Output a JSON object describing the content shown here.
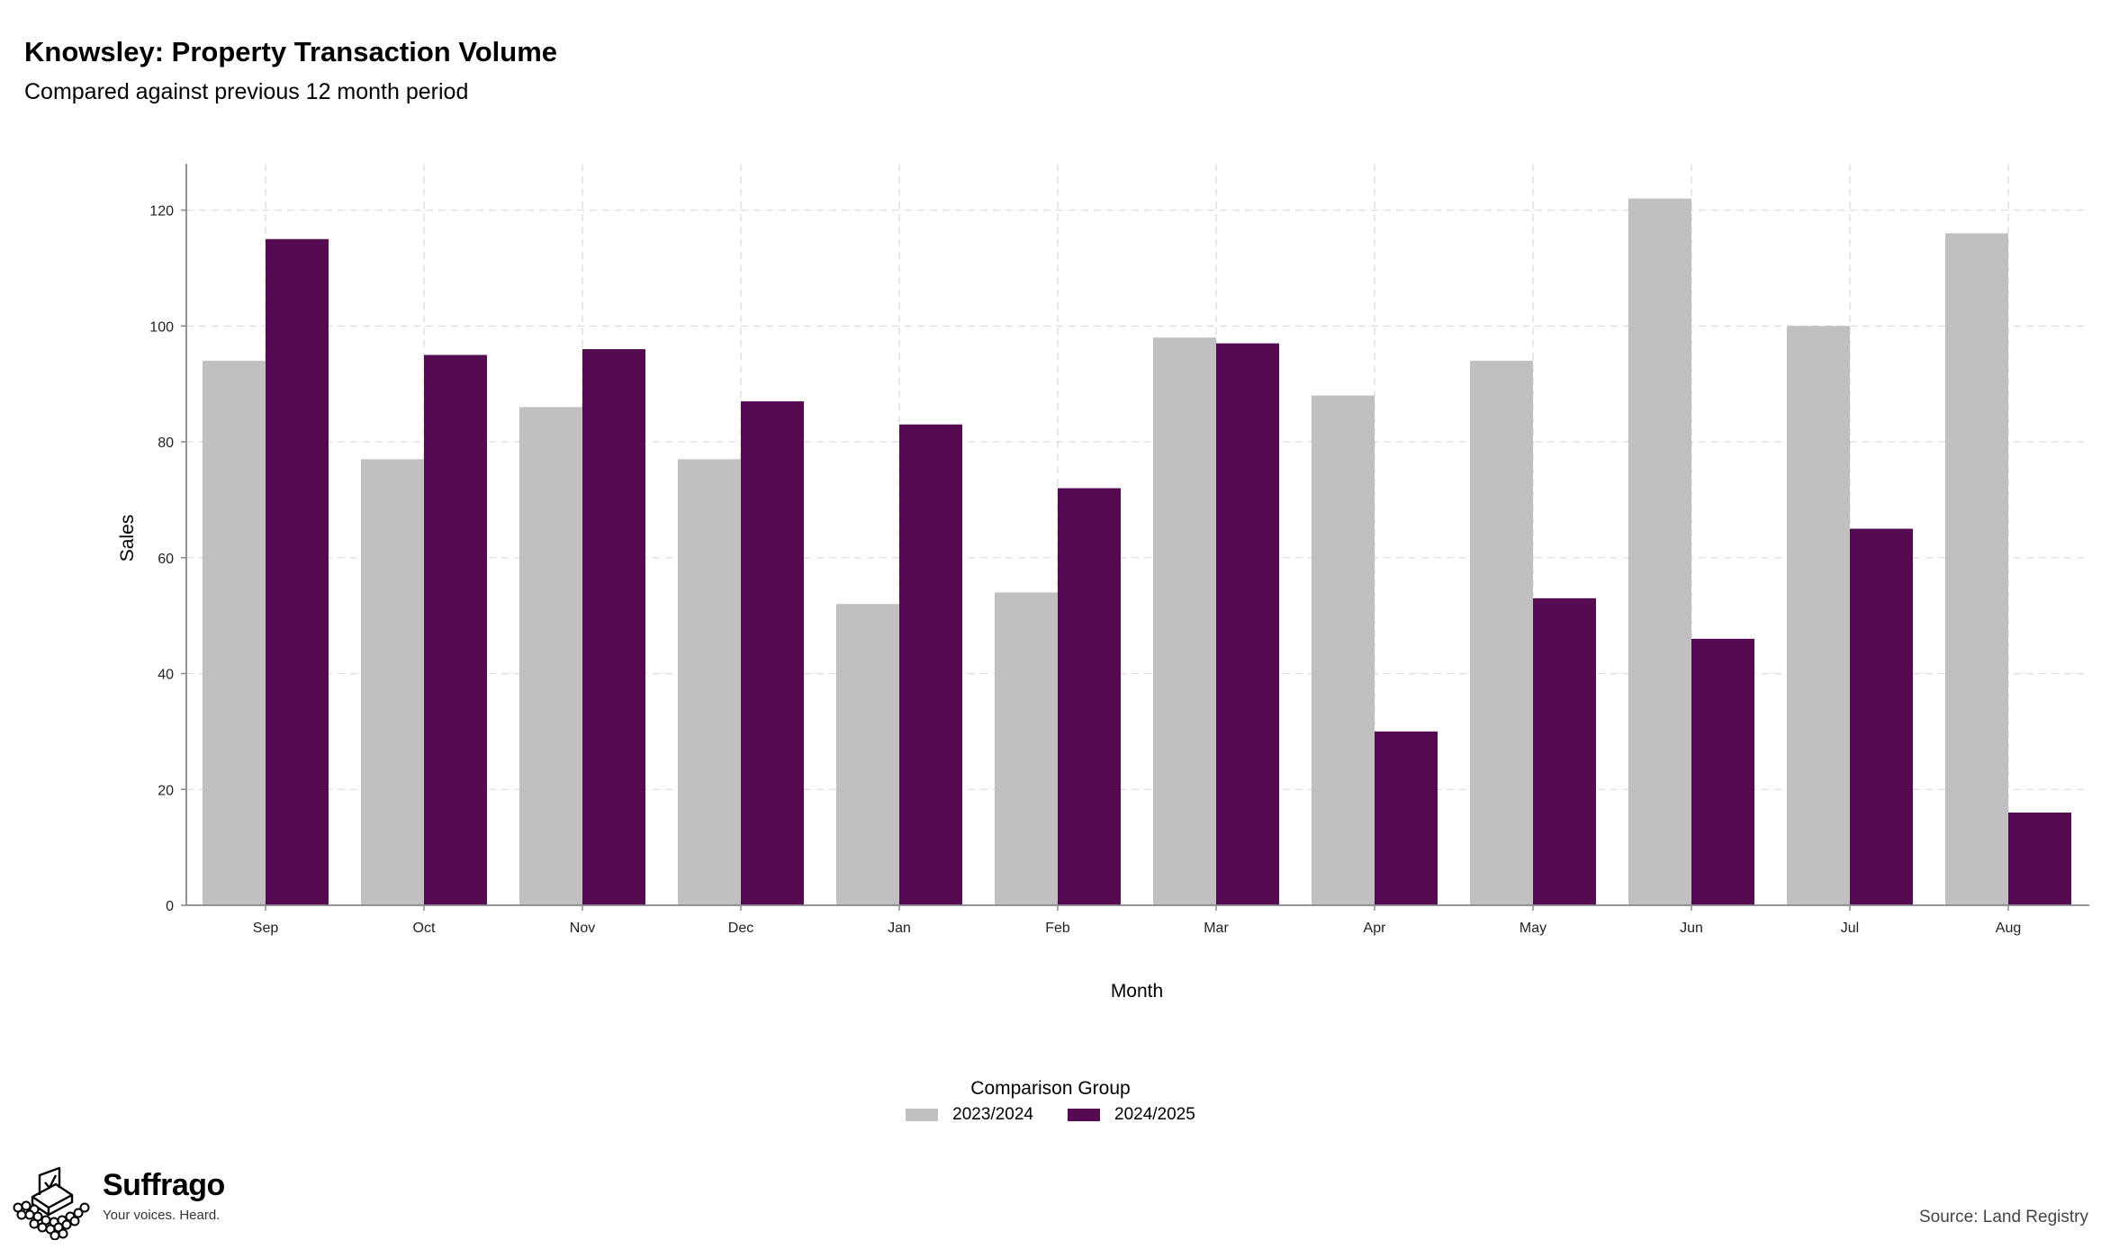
{
  "header": {
    "title": "Knowsley: Property Transaction Volume",
    "subtitle": "Compared against previous 12 month period"
  },
  "chart_data": {
    "type": "bar",
    "categories": [
      "Sep",
      "Oct",
      "Nov",
      "Dec",
      "Jan",
      "Feb",
      "Mar",
      "Apr",
      "May",
      "Jun",
      "Jul",
      "Aug"
    ],
    "series": [
      {
        "name": "2023/2024",
        "color": "#c0c0c0",
        "values": [
          94,
          77,
          86,
          77,
          52,
          54,
          98,
          88,
          94,
          122,
          100,
          116
        ]
      },
      {
        "name": "2024/2025",
        "color": "#550b52",
        "values": [
          115,
          95,
          96,
          87,
          83,
          72,
          97,
          30,
          53,
          46,
          65,
          16
        ]
      }
    ],
    "xlabel": "Month",
    "ylabel": "Sales",
    "ylim": [
      0,
      128
    ],
    "yticks": [
      0,
      20,
      40,
      60,
      80,
      100,
      120
    ],
    "grid": true,
    "legend_title": "Comparison Group",
    "legend_position": "bottom"
  },
  "branding": {
    "name": "Suffrago",
    "tagline": "Your voices. Heard.",
    "logo_icon": "ballot-box-icon"
  },
  "source": "Source: Land Registry"
}
